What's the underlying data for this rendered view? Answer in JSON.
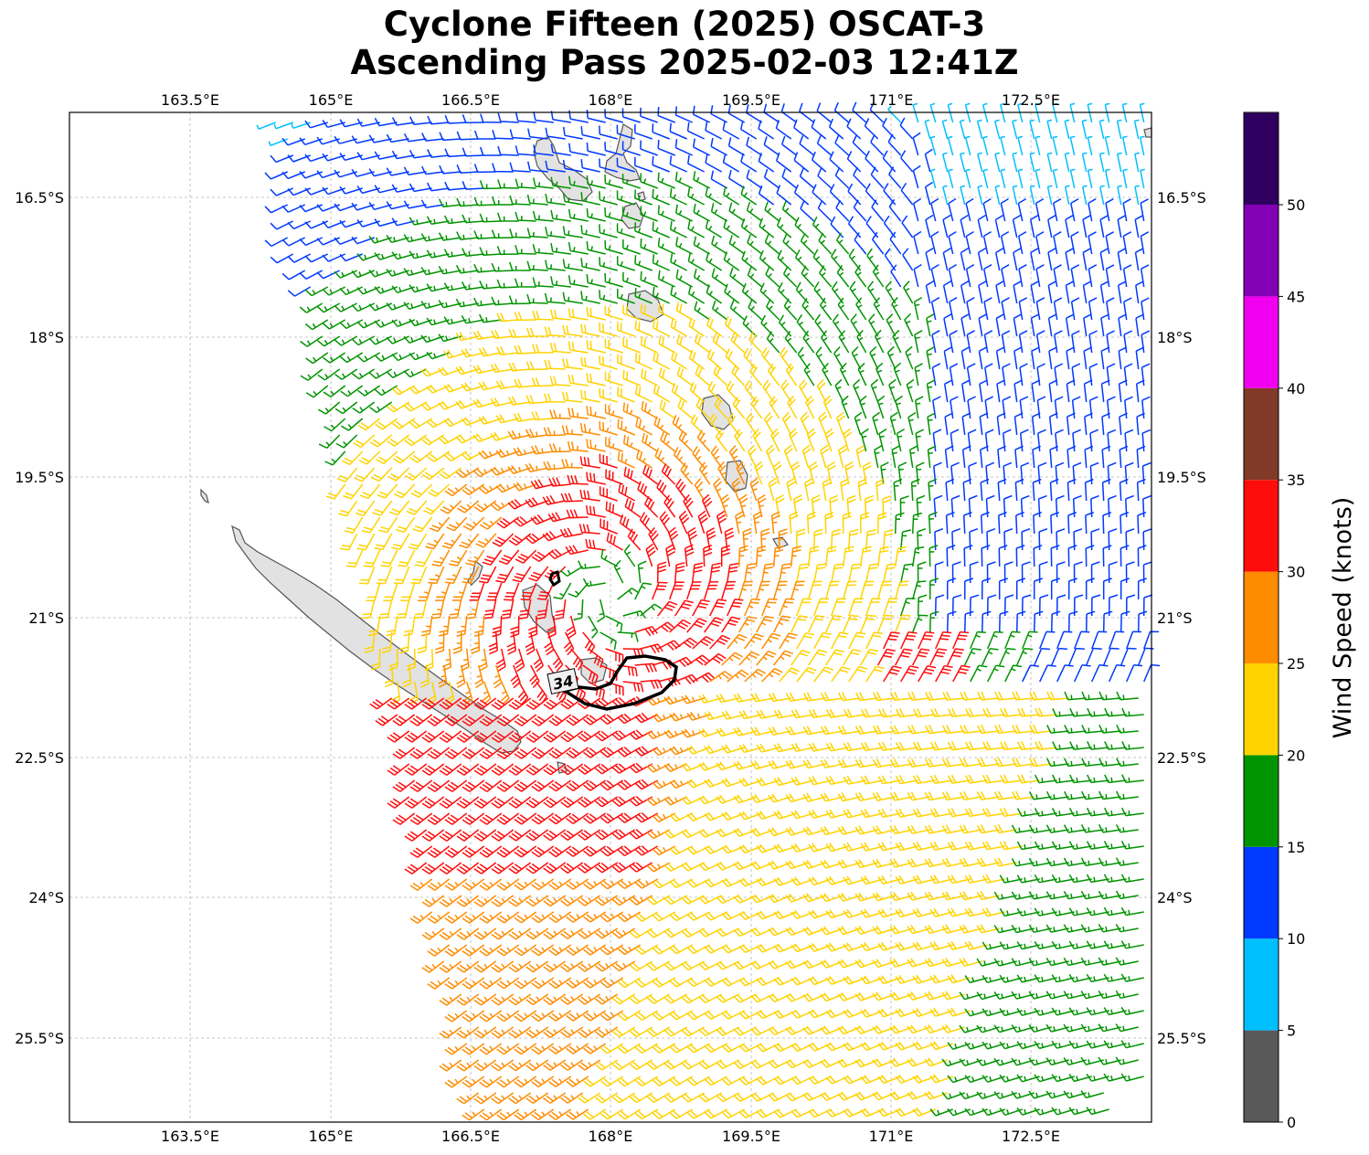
{
  "title_line1": "Cyclone Fifteen (2025) OSCAT-3",
  "title_line2": "Ascending Pass 2025-02-03 12:41Z",
  "lon_ticks": [
    "163.5°E",
    "165°E",
    "166.5°E",
    "168°E",
    "169.5°E",
    "171°E",
    "172.5°E"
  ],
  "lat_ticks": [
    "16.5°S",
    "18°S",
    "19.5°S",
    "21°S",
    "22.5°S",
    "24°S",
    "25.5°S"
  ],
  "contour_label": "34",
  "colorbar": {
    "label": "Wind Speed (knots)",
    "ticks": [
      "0",
      "5",
      "10",
      "15",
      "20",
      "25",
      "30",
      "35",
      "40",
      "45",
      "50"
    ],
    "colors": [
      "#595959",
      "#00bfff",
      "#0039ff",
      "#009400",
      "#ffd300",
      "#ff8c00",
      "#ff0c0c",
      "#803a27",
      "#f000ee",
      "#8300b5",
      "#2f005f"
    ]
  }
}
